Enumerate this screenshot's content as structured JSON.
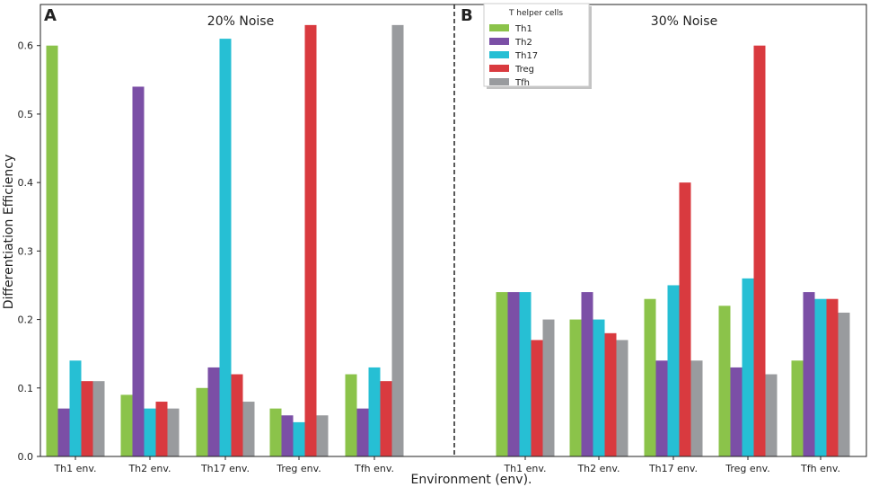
{
  "chart_data": {
    "type": "bar",
    "ylabel": "Differentiation Efficiency",
    "xlabel": "Environment (env).",
    "ylim": [
      0,
      0.66
    ],
    "yticks": [
      "0.0",
      "0.1",
      "0.2",
      "0.3",
      "0.4",
      "0.5",
      "0.6"
    ],
    "categories": [
      "Th1 env.",
      "Th2 env.",
      "Th17 env.",
      "Treg env.",
      "Tfh env."
    ],
    "legend": {
      "title": "T helper cells",
      "placement": "top-left of panel B",
      "entries": [
        "Th1",
        "Th2",
        "Th17",
        "Treg",
        "Tfh"
      ]
    },
    "colors": [
      "#8bc34a",
      "#7b4fa6",
      "#26bfd4",
      "#d93a3f",
      "#999b9e"
    ],
    "panels": [
      {
        "label": "A",
        "title": "20% Noise",
        "series": [
          {
            "name": "Th1",
            "values": [
              0.6,
              0.09,
              0.1,
              0.07,
              0.12
            ]
          },
          {
            "name": "Th2",
            "values": [
              0.07,
              0.54,
              0.13,
              0.06,
              0.07
            ]
          },
          {
            "name": "Th17",
            "values": [
              0.14,
              0.07,
              0.61,
              0.05,
              0.13
            ]
          },
          {
            "name": "Treg",
            "values": [
              0.11,
              0.08,
              0.12,
              0.63,
              0.11
            ]
          },
          {
            "name": "Tfh",
            "values": [
              0.11,
              0.07,
              0.08,
              0.06,
              0.63
            ]
          }
        ]
      },
      {
        "label": "B",
        "title": "30% Noise",
        "series": [
          {
            "name": "Th1",
            "values": [
              0.24,
              0.2,
              0.23,
              0.22,
              0.14
            ]
          },
          {
            "name": "Th2",
            "values": [
              0.24,
              0.24,
              0.14,
              0.13,
              0.24
            ]
          },
          {
            "name": "Th17",
            "values": [
              0.24,
              0.2,
              0.25,
              0.26,
              0.23
            ]
          },
          {
            "name": "Treg",
            "values": [
              0.17,
              0.18,
              0.4,
              0.6,
              0.23
            ]
          },
          {
            "name": "Tfh",
            "values": [
              0.2,
              0.17,
              0.14,
              0.12,
              0.21
            ]
          }
        ]
      }
    ]
  }
}
